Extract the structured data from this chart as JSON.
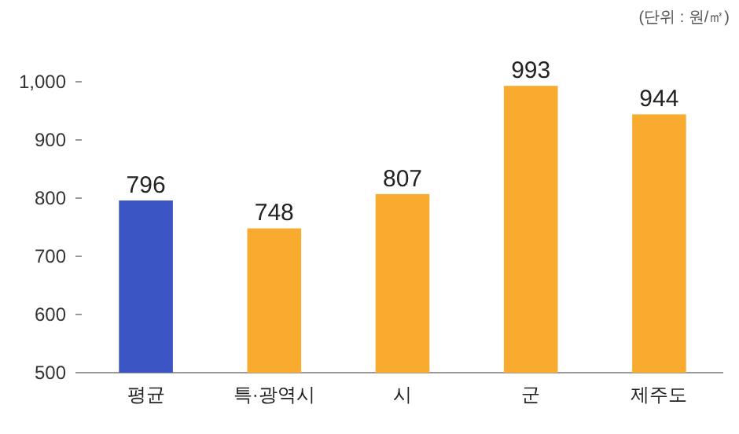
{
  "chart_data": {
    "type": "bar",
    "categories": [
      "평균",
      "특·광역시",
      "시",
      "군",
      "제주도"
    ],
    "values": [
      796,
      748,
      807,
      993,
      944
    ],
    "colors": [
      "#3b55c4",
      "#f9ab2f",
      "#f9ab2f",
      "#f9ab2f",
      "#f9ab2f"
    ],
    "ylim": [
      500,
      1000
    ],
    "yticks": [
      500,
      600,
      700,
      800,
      900,
      {
        "value": 1000,
        "label": "1,000"
      }
    ],
    "data_labels": true,
    "annotations": [
      "(단위 : 원/㎡)"
    ]
  }
}
